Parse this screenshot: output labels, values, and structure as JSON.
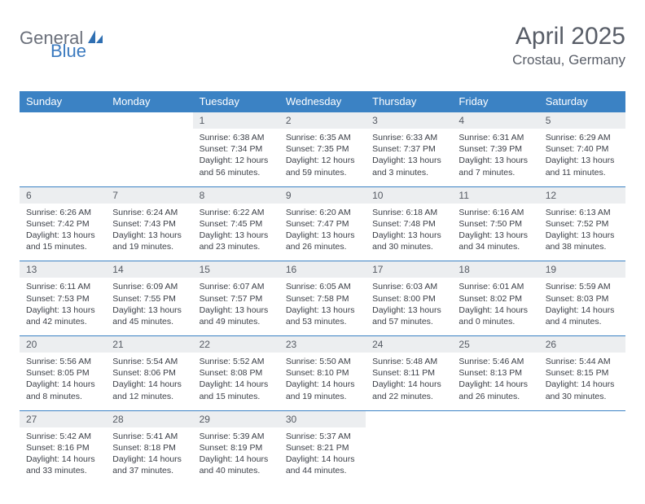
{
  "brand": {
    "part1": "General",
    "part2": "Blue"
  },
  "title": {
    "month": "April 2025",
    "location": "Crostau, Germany"
  },
  "colors": {
    "header_bg": "#3b82c4",
    "header_text": "#ffffff",
    "daynum_bg": "#eceef0",
    "text_muted": "#585d67",
    "cell_text": "#3a3e46",
    "rule": "#3b82c4",
    "logo_gray": "#6a6f7a",
    "logo_blue": "#3b7abf"
  },
  "typography": {
    "title_fontsize": 30,
    "location_fontsize": 17,
    "dayhead_fontsize": 13,
    "daynum_fontsize": 12,
    "body_fontsize": 10.5
  },
  "weekdays": [
    "Sunday",
    "Monday",
    "Tuesday",
    "Wednesday",
    "Thursday",
    "Friday",
    "Saturday"
  ],
  "weeks": [
    [
      null,
      null,
      {
        "n": "1",
        "sr": "Sunrise: 6:38 AM",
        "ss": "Sunset: 7:34 PM",
        "dl": "Daylight: 12 hours and 56 minutes."
      },
      {
        "n": "2",
        "sr": "Sunrise: 6:35 AM",
        "ss": "Sunset: 7:35 PM",
        "dl": "Daylight: 12 hours and 59 minutes."
      },
      {
        "n": "3",
        "sr": "Sunrise: 6:33 AM",
        "ss": "Sunset: 7:37 PM",
        "dl": "Daylight: 13 hours and 3 minutes."
      },
      {
        "n": "4",
        "sr": "Sunrise: 6:31 AM",
        "ss": "Sunset: 7:39 PM",
        "dl": "Daylight: 13 hours and 7 minutes."
      },
      {
        "n": "5",
        "sr": "Sunrise: 6:29 AM",
        "ss": "Sunset: 7:40 PM",
        "dl": "Daylight: 13 hours and 11 minutes."
      }
    ],
    [
      {
        "n": "6",
        "sr": "Sunrise: 6:26 AM",
        "ss": "Sunset: 7:42 PM",
        "dl": "Daylight: 13 hours and 15 minutes."
      },
      {
        "n": "7",
        "sr": "Sunrise: 6:24 AM",
        "ss": "Sunset: 7:43 PM",
        "dl": "Daylight: 13 hours and 19 minutes."
      },
      {
        "n": "8",
        "sr": "Sunrise: 6:22 AM",
        "ss": "Sunset: 7:45 PM",
        "dl": "Daylight: 13 hours and 23 minutes."
      },
      {
        "n": "9",
        "sr": "Sunrise: 6:20 AM",
        "ss": "Sunset: 7:47 PM",
        "dl": "Daylight: 13 hours and 26 minutes."
      },
      {
        "n": "10",
        "sr": "Sunrise: 6:18 AM",
        "ss": "Sunset: 7:48 PM",
        "dl": "Daylight: 13 hours and 30 minutes."
      },
      {
        "n": "11",
        "sr": "Sunrise: 6:16 AM",
        "ss": "Sunset: 7:50 PM",
        "dl": "Daylight: 13 hours and 34 minutes."
      },
      {
        "n": "12",
        "sr": "Sunrise: 6:13 AM",
        "ss": "Sunset: 7:52 PM",
        "dl": "Daylight: 13 hours and 38 minutes."
      }
    ],
    [
      {
        "n": "13",
        "sr": "Sunrise: 6:11 AM",
        "ss": "Sunset: 7:53 PM",
        "dl": "Daylight: 13 hours and 42 minutes."
      },
      {
        "n": "14",
        "sr": "Sunrise: 6:09 AM",
        "ss": "Sunset: 7:55 PM",
        "dl": "Daylight: 13 hours and 45 minutes."
      },
      {
        "n": "15",
        "sr": "Sunrise: 6:07 AM",
        "ss": "Sunset: 7:57 PM",
        "dl": "Daylight: 13 hours and 49 minutes."
      },
      {
        "n": "16",
        "sr": "Sunrise: 6:05 AM",
        "ss": "Sunset: 7:58 PM",
        "dl": "Daylight: 13 hours and 53 minutes."
      },
      {
        "n": "17",
        "sr": "Sunrise: 6:03 AM",
        "ss": "Sunset: 8:00 PM",
        "dl": "Daylight: 13 hours and 57 minutes."
      },
      {
        "n": "18",
        "sr": "Sunrise: 6:01 AM",
        "ss": "Sunset: 8:02 PM",
        "dl": "Daylight: 14 hours and 0 minutes."
      },
      {
        "n": "19",
        "sr": "Sunrise: 5:59 AM",
        "ss": "Sunset: 8:03 PM",
        "dl": "Daylight: 14 hours and 4 minutes."
      }
    ],
    [
      {
        "n": "20",
        "sr": "Sunrise: 5:56 AM",
        "ss": "Sunset: 8:05 PM",
        "dl": "Daylight: 14 hours and 8 minutes."
      },
      {
        "n": "21",
        "sr": "Sunrise: 5:54 AM",
        "ss": "Sunset: 8:06 PM",
        "dl": "Daylight: 14 hours and 12 minutes."
      },
      {
        "n": "22",
        "sr": "Sunrise: 5:52 AM",
        "ss": "Sunset: 8:08 PM",
        "dl": "Daylight: 14 hours and 15 minutes."
      },
      {
        "n": "23",
        "sr": "Sunrise: 5:50 AM",
        "ss": "Sunset: 8:10 PM",
        "dl": "Daylight: 14 hours and 19 minutes."
      },
      {
        "n": "24",
        "sr": "Sunrise: 5:48 AM",
        "ss": "Sunset: 8:11 PM",
        "dl": "Daylight: 14 hours and 22 minutes."
      },
      {
        "n": "25",
        "sr": "Sunrise: 5:46 AM",
        "ss": "Sunset: 8:13 PM",
        "dl": "Daylight: 14 hours and 26 minutes."
      },
      {
        "n": "26",
        "sr": "Sunrise: 5:44 AM",
        "ss": "Sunset: 8:15 PM",
        "dl": "Daylight: 14 hours and 30 minutes."
      }
    ],
    [
      {
        "n": "27",
        "sr": "Sunrise: 5:42 AM",
        "ss": "Sunset: 8:16 PM",
        "dl": "Daylight: 14 hours and 33 minutes."
      },
      {
        "n": "28",
        "sr": "Sunrise: 5:41 AM",
        "ss": "Sunset: 8:18 PM",
        "dl": "Daylight: 14 hours and 37 minutes."
      },
      {
        "n": "29",
        "sr": "Sunrise: 5:39 AM",
        "ss": "Sunset: 8:19 PM",
        "dl": "Daylight: 14 hours and 40 minutes."
      },
      {
        "n": "30",
        "sr": "Sunrise: 5:37 AM",
        "ss": "Sunset: 8:21 PM",
        "dl": "Daylight: 14 hours and 44 minutes."
      },
      null,
      null,
      null
    ]
  ]
}
